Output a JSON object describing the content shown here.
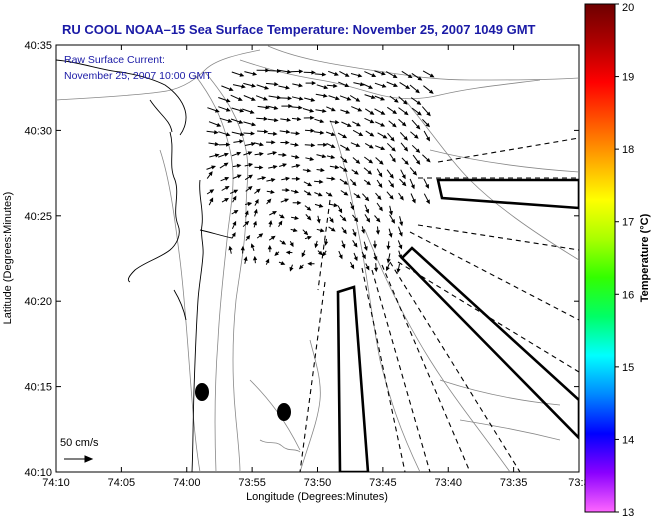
{
  "title": "RU COOL  NOAA–15  Sea Surface Temperature:  November 25, 2007 1049 GMT",
  "overlay_note": {
    "line1": "Raw Surface Current:",
    "line2": "November 25, 2007 10:00 GMT"
  },
  "scale_label": "50 cm/s",
  "axes": {
    "xlabel": "Longitude (Degrees:Minutes)",
    "ylabel": "Latitude (Degrees:Minutes)",
    "x_ticks": [
      "74:10",
      "74:05",
      "74:00",
      "73:55",
      "73:50",
      "73:45",
      "73:40",
      "73:35",
      "73:3"
    ],
    "y_ticks": [
      "40:35",
      "40:30",
      "40:25",
      "40:20",
      "40:15",
      "40:10"
    ]
  },
  "colorbar": {
    "label": "Temperature (°C)",
    "ticks": [
      "20",
      "19",
      "18",
      "17",
      "16",
      "15",
      "14",
      "13"
    ],
    "range": [
      13,
      20
    ],
    "colors": [
      "#ff66ff",
      "#8a00ff",
      "#0000ff",
      "#0088ff",
      "#00ffff",
      "#00ff66",
      "#33ff00",
      "#aaff00",
      "#ffff00",
      "#ffaa00",
      "#ff5500",
      "#ff0000",
      "#b00000",
      "#6e0000"
    ]
  },
  "colors": {
    "title": "#1a1aa6",
    "ink": "#000000",
    "contour": "#888888"
  }
}
